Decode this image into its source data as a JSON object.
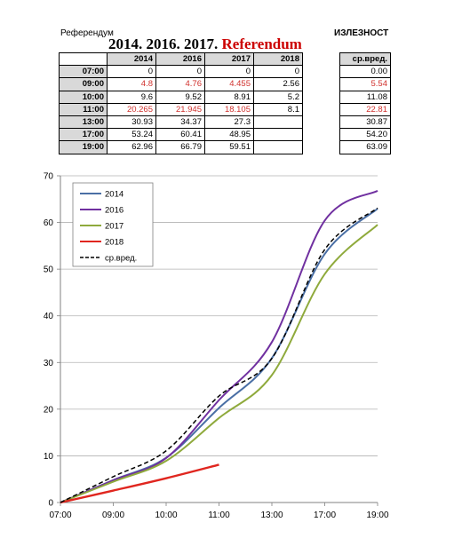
{
  "header": {
    "left_label": "Референдум",
    "right_label": "ИЗЛЕЗНОСТ",
    "title_years": "2014. 2016. 2017.",
    "title_word": "Referendum"
  },
  "table": {
    "columns": [
      "2014",
      "2016",
      "2017",
      "2018"
    ],
    "rows": [
      {
        "time": "07:00",
        "cells": [
          "0",
          "0",
          "0",
          "0"
        ],
        "avg": "0.00",
        "red": false
      },
      {
        "time": "09:00",
        "cells": [
          "4.8",
          "4.76",
          "4.455",
          "2.56"
        ],
        "avg": "5.54",
        "red": true
      },
      {
        "time": "10:00",
        "cells": [
          "9.6",
          "9.52",
          "8.91",
          "5.2"
        ],
        "avg": "11.08",
        "red": false
      },
      {
        "time": "11:00",
        "cells": [
          "20.265",
          "21.945",
          "18.105",
          "8.1"
        ],
        "avg": "22.81",
        "red": true
      },
      {
        "time": "13:00",
        "cells": [
          "30.93",
          "34.37",
          "27.3",
          ""
        ],
        "avg": "30.87",
        "red": false
      },
      {
        "time": "17:00",
        "cells": [
          "53.24",
          "60.41",
          "48.95",
          ""
        ],
        "avg": "54.20",
        "red": false
      },
      {
        "time": "19:00",
        "cells": [
          "62.96",
          "66.79",
          "59.51",
          ""
        ],
        "avg": "63.09",
        "red": false
      }
    ],
    "avg_header": "ср.вред."
  },
  "chart_data": {
    "type": "line",
    "x_ticks": [
      "07:00",
      "09:00",
      "10:00",
      "11:00",
      "13:00",
      "17:00",
      "19:00"
    ],
    "y_ticks": [
      "0",
      "10",
      "20",
      "30",
      "40",
      "50",
      "60",
      "70"
    ],
    "ylim": [
      0,
      70
    ],
    "grid": "horizontal",
    "legend_position": "top-left",
    "series": [
      {
        "name": "2014",
        "color": "#4a6fa5",
        "dash": false,
        "values": [
          0,
          4.8,
          9.6,
          20.265,
          30.93,
          53.24,
          62.96
        ]
      },
      {
        "name": "2016",
        "color": "#7030a0",
        "dash": false,
        "values": [
          0,
          4.76,
          9.52,
          21.945,
          34.37,
          60.41,
          66.79
        ]
      },
      {
        "name": "2017",
        "color": "#8faa3c",
        "dash": false,
        "values": [
          0,
          4.455,
          8.91,
          18.105,
          27.3,
          48.95,
          59.51
        ]
      },
      {
        "name": "2018",
        "color": "#e0261f",
        "dash": false,
        "values": [
          0,
          2.56,
          5.2,
          8.1,
          null,
          null,
          null
        ]
      },
      {
        "name": "ср.вред.",
        "color": "#000000",
        "dash": true,
        "values": [
          0,
          5.54,
          11.08,
          22.81,
          30.87,
          54.2,
          63.09
        ]
      }
    ]
  }
}
